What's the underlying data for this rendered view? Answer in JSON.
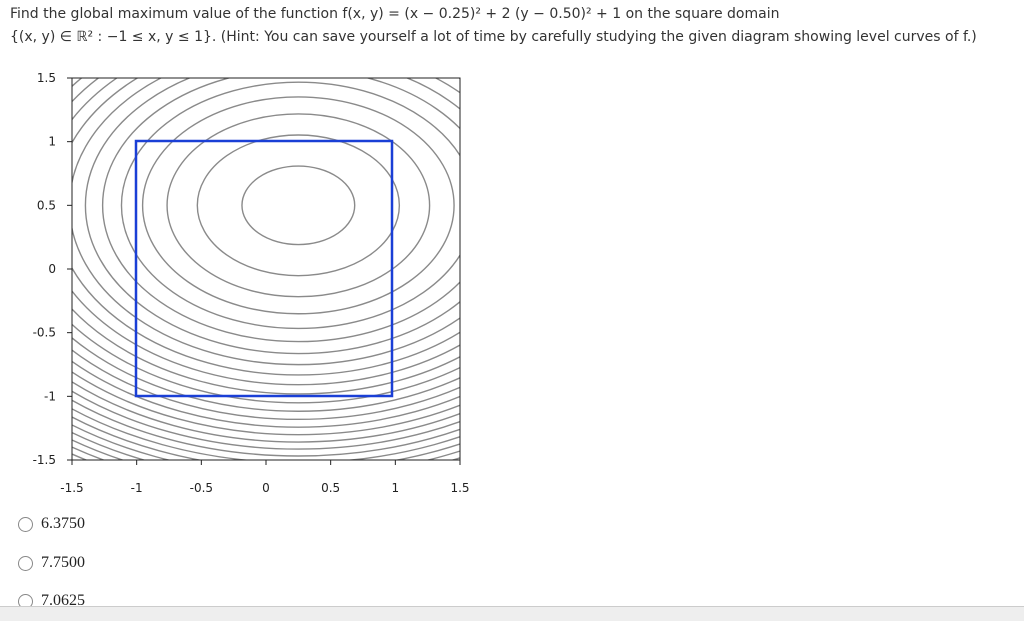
{
  "question": {
    "line1": "Find the global maximum value of the function f(x, y) = (x − 0.25)² + 2 (y − 0.50)² + 1 on the square domain",
    "line2": "{(x, y) ∈ ℝ² : −1 ≤ x, y ≤ 1}. (Hint: You can save yourself a lot of time by carefully studying the given diagram showing level curves of f.)"
  },
  "plot": {
    "xlim": [
      -1.5,
      1.5
    ],
    "ylim": [
      -1.5,
      1.5
    ],
    "xticks": [
      -1.5,
      -1,
      -0.5,
      0,
      0.5,
      1,
      1.5
    ],
    "yticks": [
      -1.5,
      -1,
      -0.5,
      0,
      0.5,
      1,
      1.5
    ]
  },
  "options": [
    "6.3750",
    "7.7500",
    "7.0625"
  ]
}
